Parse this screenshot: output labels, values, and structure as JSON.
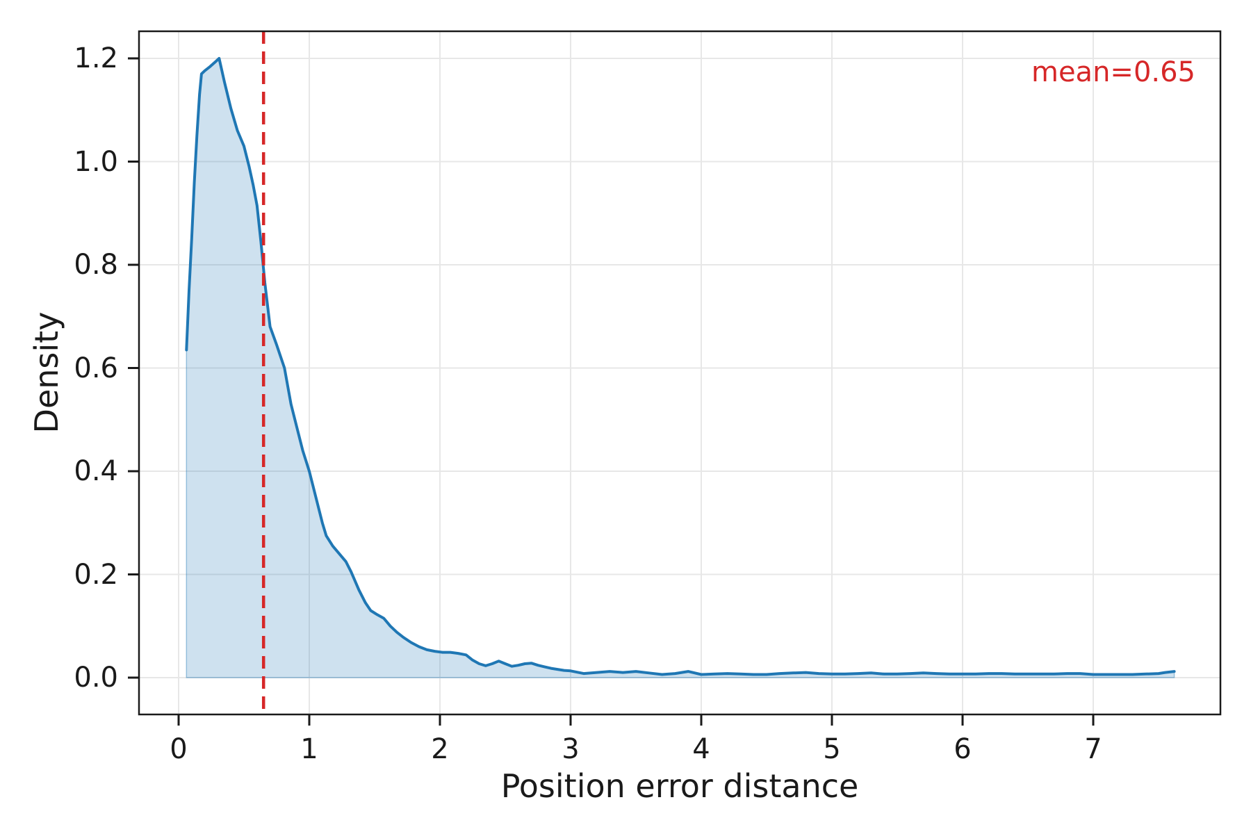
{
  "figure": {
    "xlabel": "Position error distance",
    "ylabel": "Density",
    "annotation": "mean=0.65"
  },
  "chart_data": {
    "type": "area",
    "title": "",
    "xlabel": "Position error distance",
    "ylabel": "Density",
    "x_ticks": [
      0,
      1,
      2,
      3,
      4,
      5,
      6,
      7
    ],
    "x_tick_labels": [
      "0",
      "1",
      "2",
      "3",
      "4",
      "5",
      "6",
      "7"
    ],
    "y_ticks": [
      0.0,
      0.2,
      0.4,
      0.6,
      0.8,
      1.0,
      1.2
    ],
    "y_tick_labels": [
      "0.0",
      "0.2",
      "0.4",
      "0.6",
      "0.8",
      "1.0",
      "1.2"
    ],
    "xlim": [
      -0.3,
      7.97
    ],
    "ylim": [
      -0.07,
      1.25
    ],
    "grid": true,
    "legend": "none",
    "mean_line": {
      "x": 0.65,
      "label": "mean=0.65",
      "style": "dashed"
    },
    "colors": {
      "line": "#1f77b4",
      "fill": "rgba(31,119,180,0.22)",
      "fill_edge": "rgba(31,119,180,0.40)",
      "mean": "#d62728",
      "grid": "#e7e7e7",
      "spine": "#1a1a1a",
      "text": "#1a1a1a"
    },
    "series": [
      {
        "name": "position-error-density",
        "points": [
          [
            0.06,
            0.635
          ],
          [
            0.08,
            0.75
          ],
          [
            0.1,
            0.85
          ],
          [
            0.12,
            0.96
          ],
          [
            0.14,
            1.05
          ],
          [
            0.16,
            1.13
          ],
          [
            0.175,
            1.17
          ],
          [
            0.2,
            1.176
          ],
          [
            0.24,
            1.184
          ],
          [
            0.28,
            1.193
          ],
          [
            0.31,
            1.2
          ],
          [
            0.35,
            1.155
          ],
          [
            0.4,
            1.103
          ],
          [
            0.45,
            1.06
          ],
          [
            0.5,
            1.03
          ],
          [
            0.54,
            0.99
          ],
          [
            0.57,
            0.955
          ],
          [
            0.6,
            0.915
          ],
          [
            0.63,
            0.845
          ],
          [
            0.66,
            0.765
          ],
          [
            0.7,
            0.68
          ],
          [
            0.75,
            0.645
          ],
          [
            0.81,
            0.6
          ],
          [
            0.86,
            0.53
          ],
          [
            0.9,
            0.49
          ],
          [
            0.95,
            0.44
          ],
          [
            1.0,
            0.4
          ],
          [
            1.05,
            0.35
          ],
          [
            1.1,
            0.3
          ],
          [
            1.13,
            0.275
          ],
          [
            1.18,
            0.255
          ],
          [
            1.23,
            0.24
          ],
          [
            1.28,
            0.225
          ],
          [
            1.32,
            0.205
          ],
          [
            1.38,
            0.17
          ],
          [
            1.43,
            0.145
          ],
          [
            1.47,
            0.13
          ],
          [
            1.52,
            0.122
          ],
          [
            1.57,
            0.115
          ],
          [
            1.62,
            0.1
          ],
          [
            1.67,
            0.088
          ],
          [
            1.72,
            0.078
          ],
          [
            1.78,
            0.068
          ],
          [
            1.84,
            0.06
          ],
          [
            1.9,
            0.054
          ],
          [
            1.96,
            0.051
          ],
          [
            2.02,
            0.049
          ],
          [
            2.08,
            0.049
          ],
          [
            2.14,
            0.047
          ],
          [
            2.2,
            0.044
          ],
          [
            2.25,
            0.034
          ],
          [
            2.3,
            0.027
          ],
          [
            2.35,
            0.023
          ],
          [
            2.4,
            0.027
          ],
          [
            2.45,
            0.032
          ],
          [
            2.5,
            0.027
          ],
          [
            2.55,
            0.022
          ],
          [
            2.6,
            0.024
          ],
          [
            2.65,
            0.027
          ],
          [
            2.7,
            0.028
          ],
          [
            2.75,
            0.024
          ],
          [
            2.8,
            0.021
          ],
          [
            2.85,
            0.018
          ],
          [
            2.9,
            0.016
          ],
          [
            2.95,
            0.014
          ],
          [
            3.0,
            0.013
          ],
          [
            3.1,
            0.008
          ],
          [
            3.2,
            0.01
          ],
          [
            3.3,
            0.012
          ],
          [
            3.4,
            0.01
          ],
          [
            3.5,
            0.012
          ],
          [
            3.6,
            0.009
          ],
          [
            3.7,
            0.006
          ],
          [
            3.8,
            0.008
          ],
          [
            3.9,
            0.012
          ],
          [
            4.0,
            0.006
          ],
          [
            4.1,
            0.007
          ],
          [
            4.2,
            0.008
          ],
          [
            4.3,
            0.007
          ],
          [
            4.4,
            0.006
          ],
          [
            4.5,
            0.006
          ],
          [
            4.6,
            0.008
          ],
          [
            4.7,
            0.009
          ],
          [
            4.8,
            0.01
          ],
          [
            4.9,
            0.008
          ],
          [
            5.0,
            0.007
          ],
          [
            5.1,
            0.007
          ],
          [
            5.2,
            0.008
          ],
          [
            5.3,
            0.009
          ],
          [
            5.4,
            0.007
          ],
          [
            5.5,
            0.007
          ],
          [
            5.6,
            0.008
          ],
          [
            5.7,
            0.009
          ],
          [
            5.8,
            0.008
          ],
          [
            5.9,
            0.007
          ],
          [
            6.0,
            0.007
          ],
          [
            6.1,
            0.007
          ],
          [
            6.2,
            0.008
          ],
          [
            6.3,
            0.008
          ],
          [
            6.4,
            0.007
          ],
          [
            6.5,
            0.007
          ],
          [
            6.6,
            0.007
          ],
          [
            6.7,
            0.007
          ],
          [
            6.8,
            0.008
          ],
          [
            6.9,
            0.008
          ],
          [
            7.0,
            0.006
          ],
          [
            7.1,
            0.006
          ],
          [
            7.2,
            0.006
          ],
          [
            7.3,
            0.006
          ],
          [
            7.4,
            0.007
          ],
          [
            7.5,
            0.008
          ],
          [
            7.55,
            0.01
          ],
          [
            7.62,
            0.012
          ]
        ]
      }
    ]
  }
}
